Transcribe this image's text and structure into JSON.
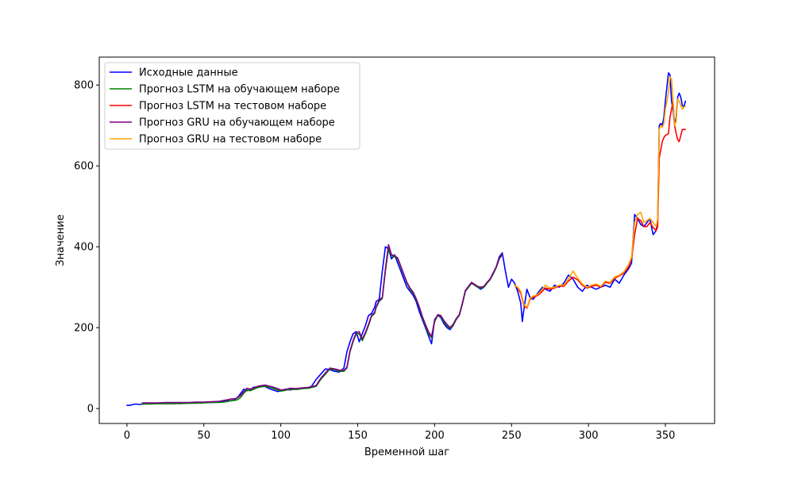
{
  "chart_data": {
    "type": "line",
    "title": "",
    "xlabel": "Временной шаг",
    "ylabel": "Значение",
    "xlim": [
      -18,
      382
    ],
    "ylim": [
      -37,
      869
    ],
    "xticks": [
      0,
      50,
      100,
      150,
      200,
      250,
      300,
      350
    ],
    "yticks": [
      0,
      200,
      400,
      600,
      800
    ],
    "grid": false,
    "legend_position": "top-left",
    "series": [
      {
        "name": "Исходные данные",
        "color": "#0000ff",
        "x": [
          0,
          2,
          4,
          6,
          8,
          10,
          15,
          20,
          25,
          30,
          35,
          40,
          45,
          50,
          55,
          60,
          63,
          66,
          68,
          70,
          72,
          74,
          76,
          78,
          80,
          82,
          85,
          88,
          90,
          92,
          95,
          98,
          100,
          103,
          106,
          110,
          114,
          118,
          120,
          123,
          126,
          129,
          132,
          135,
          138,
          141,
          143,
          145,
          147,
          149,
          151,
          153,
          155,
          157,
          159,
          161,
          162,
          164,
          166,
          168,
          170,
          172,
          174,
          176,
          178,
          180,
          182,
          184,
          186,
          188,
          190,
          192,
          194,
          196,
          198,
          200,
          202,
          204,
          206,
          208,
          210,
          212,
          214,
          216,
          218,
          220,
          222,
          224,
          226,
          228,
          230,
          232,
          234,
          236,
          238,
          240,
          242,
          244,
          246,
          248,
          250,
          252,
          254,
          256,
          257,
          258,
          260,
          262,
          264,
          266,
          268,
          270,
          272,
          275,
          278,
          281,
          284,
          287,
          290,
          293,
          296,
          299,
          302,
          305,
          308,
          311,
          314,
          317,
          320,
          323,
          326,
          328,
          330,
          332,
          334,
          336,
          338,
          340,
          342,
          344,
          345,
          346,
          347,
          348,
          349,
          350,
          352,
          353,
          354,
          355,
          356,
          357,
          358,
          359,
          360,
          361,
          362,
          363
        ],
        "y": [
          8,
          8,
          10,
          11,
          10,
          11,
          12,
          12,
          12,
          12,
          13,
          13,
          14,
          15,
          15,
          16,
          18,
          20,
          19,
          22,
          28,
          38,
          48,
          44,
          46,
          52,
          54,
          56,
          54,
          50,
          46,
          42,
          44,
          48,
          46,
          49,
          50,
          52,
          55,
          72,
          85,
          98,
          96,
          92,
          90,
          100,
          140,
          165,
          185,
          190,
          165,
          185,
          205,
          230,
          235,
          250,
          265,
          270,
          340,
          400,
          395,
          370,
          380,
          360,
          340,
          320,
          300,
          290,
          280,
          265,
          240,
          220,
          200,
          180,
          160,
          220,
          230,
          225,
          210,
          200,
          195,
          205,
          220,
          230,
          260,
          290,
          300,
          310,
          305,
          300,
          295,
          300,
          310,
          320,
          335,
          350,
          375,
          385,
          340,
          300,
          320,
          310,
          290,
          260,
          215,
          245,
          295,
          275,
          270,
          280,
          290,
          300,
          295,
          290,
          305,
          300,
          310,
          330,
          320,
          300,
          290,
          305,
          300,
          295,
          300,
          305,
          300,
          320,
          310,
          330,
          345,
          360,
          480,
          470,
          455,
          450,
          460,
          470,
          430,
          440,
          470,
          700,
          705,
          700,
          720,
          760,
          830,
          825,
          760,
          740,
          700,
          720,
          770,
          780,
          770,
          750,
          745,
          760
        ]
      },
      {
        "name": "Прогноз LSTM на обучающем наборе",
        "color": "#008000",
        "x": [
          10,
          15,
          20,
          25,
          30,
          35,
          40,
          45,
          50,
          55,
          60,
          63,
          66,
          68,
          70,
          72,
          74,
          76,
          78,
          80,
          82,
          85,
          88,
          90,
          92,
          95,
          98,
          100,
          103,
          106,
          110,
          114,
          118,
          120,
          123,
          126,
          129,
          132,
          135,
          138,
          141,
          143,
          145,
          147,
          149,
          151,
          153,
          155,
          157,
          159,
          161,
          162,
          164,
          166,
          168,
          170,
          172,
          174,
          176,
          178,
          180,
          182,
          184,
          186,
          188,
          190,
          192,
          194,
          196,
          198,
          200,
          202,
          204,
          206,
          208,
          210,
          212,
          214,
          216,
          218,
          220,
          222,
          224,
          226,
          228,
          230,
          232,
          234,
          236,
          238,
          240,
          242,
          244
        ],
        "y": [
          11,
          11,
          12,
          12,
          12,
          12,
          13,
          13,
          14,
          15,
          15,
          16,
          18,
          20,
          20,
          22,
          28,
          38,
          46,
          44,
          47,
          52,
          54,
          55,
          54,
          50,
          46,
          43,
          45,
          48,
          47,
          49,
          50,
          52,
          55,
          72,
          85,
          98,
          96,
          92,
          92,
          100,
          140,
          165,
          185,
          185,
          168,
          185,
          205,
          228,
          235,
          250,
          265,
          272,
          340,
          395,
          378,
          375,
          370,
          350,
          330,
          310,
          295,
          285,
          270,
          250,
          225,
          205,
          185,
          175,
          215,
          230,
          228,
          215,
          205,
          198,
          205,
          220,
          230,
          258,
          290,
          300,
          310,
          305,
          300,
          298,
          300,
          310,
          318,
          332,
          348,
          370,
          380
        ]
      },
      {
        "name": "Прогноз LSTM на тестовом наборе",
        "color": "#ff0000",
        "x": [
          252,
          254,
          256,
          258,
          260,
          262,
          264,
          266,
          268,
          270,
          272,
          275,
          278,
          281,
          284,
          287,
          290,
          293,
          296,
          299,
          302,
          305,
          308,
          311,
          314,
          317,
          320,
          323,
          326,
          328,
          330,
          332,
          334,
          336,
          338,
          340,
          342,
          344,
          345,
          346,
          347,
          348,
          349,
          350,
          352,
          353,
          354,
          355,
          356,
          357,
          358,
          359,
          360,
          361,
          362,
          363
        ],
        "y": [
          305,
          298,
          285,
          255,
          248,
          270,
          275,
          278,
          282,
          290,
          298,
          295,
          298,
          303,
          302,
          315,
          325,
          318,
          305,
          298,
          302,
          305,
          300,
          312,
          310,
          322,
          328,
          335,
          350,
          370,
          430,
          470,
          465,
          450,
          450,
          460,
          448,
          440,
          450,
          620,
          640,
          660,
          670,
          675,
          680,
          720,
          740,
          760,
          700,
          680,
          665,
          660,
          675,
          690,
          690,
          690
        ]
      },
      {
        "name": "Прогноз GRU на обучающем наборе",
        "color": "#800080",
        "x": [
          10,
          15,
          20,
          25,
          30,
          35,
          40,
          45,
          50,
          55,
          60,
          63,
          66,
          68,
          70,
          72,
          74,
          76,
          78,
          80,
          82,
          85,
          88,
          90,
          92,
          95,
          98,
          100,
          103,
          106,
          110,
          114,
          118,
          120,
          123,
          126,
          129,
          132,
          135,
          138,
          141,
          143,
          145,
          147,
          149,
          151,
          153,
          155,
          157,
          159,
          161,
          162,
          164,
          166,
          168,
          170,
          172,
          174,
          176,
          178,
          180,
          182,
          184,
          186,
          188,
          190,
          192,
          194,
          196,
          198,
          200,
          202,
          204,
          206,
          208,
          210,
          212,
          214,
          216,
          218,
          220,
          222,
          224,
          226,
          228,
          230,
          232,
          234,
          236,
          238,
          240,
          242,
          244
        ],
        "y": [
          14,
          14,
          14,
          15,
          15,
          15,
          15,
          16,
          16,
          17,
          18,
          20,
          22,
          24,
          24,
          27,
          33,
          42,
          50,
          48,
          50,
          55,
          57,
          58,
          56,
          53,
          49,
          46,
          47,
          50,
          49,
          51,
          52,
          54,
          57,
          75,
          88,
          100,
          98,
          95,
          94,
          102,
          143,
          168,
          188,
          190,
          172,
          188,
          208,
          230,
          238,
          252,
          268,
          275,
          345,
          405,
          380,
          378,
          372,
          352,
          332,
          312,
          298,
          288,
          272,
          252,
          228,
          208,
          190,
          178,
          218,
          232,
          230,
          218,
          208,
          200,
          208,
          222,
          232,
          260,
          292,
          302,
          312,
          307,
          302,
          300,
          302,
          312,
          320,
          334,
          350,
          372,
          382
        ]
      },
      {
        "name": "Прогноз GRU на тестовом наборе",
        "color": "#ffa500",
        "x": [
          252,
          254,
          256,
          258,
          260,
          262,
          264,
          266,
          268,
          270,
          272,
          275,
          278,
          281,
          284,
          287,
          290,
          293,
          296,
          299,
          302,
          305,
          308,
          311,
          314,
          317,
          320,
          323,
          326,
          328,
          330,
          332,
          334,
          336,
          338,
          340,
          342,
          344,
          345,
          346,
          347,
          348,
          349,
          350,
          352,
          353,
          354,
          355,
          356,
          357,
          358,
          359,
          360,
          361,
          362,
          363
        ],
        "y": [
          305,
          300,
          290,
          258,
          250,
          272,
          278,
          280,
          285,
          295,
          305,
          298,
          300,
          305,
          305,
          320,
          340,
          322,
          308,
          300,
          305,
          308,
          302,
          315,
          312,
          325,
          330,
          338,
          355,
          375,
          460,
          480,
          485,
          460,
          465,
          470,
          460,
          450,
          470,
          690,
          700,
          695,
          705,
          740,
          780,
          820,
          815,
          760,
          700,
          710,
          765,
          760,
          750,
          740,
          745,
          748
        ]
      }
    ]
  }
}
